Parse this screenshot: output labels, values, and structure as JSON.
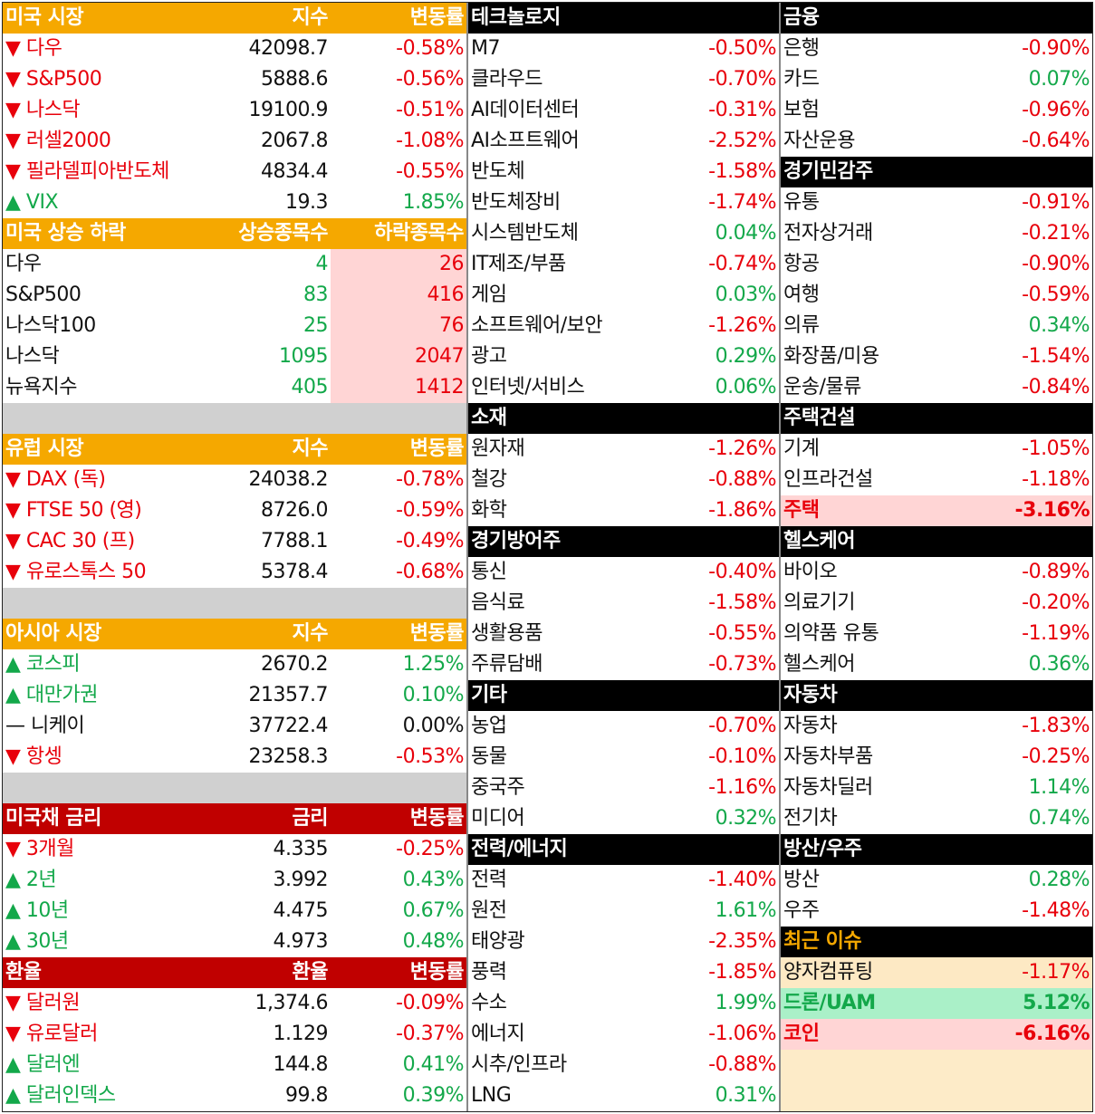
{
  "colors": {
    "up": "#13a84a",
    "down": "#e8000b",
    "flat": "#111111"
  },
  "left": [
    {
      "title": "미국 시장",
      "cols": [
        "지수",
        "변동률"
      ],
      "header_bg": "#f5a800",
      "header_color": "#ffffff",
      "rows": [
        {
          "name": "▼ 다우",
          "value": "42098.7",
          "change": "-0.58%"
        },
        {
          "name": "▼ S&P500",
          "value": "5888.6",
          "change": "-0.56%"
        },
        {
          "name": "▼ 나스닥",
          "value": "19100.9",
          "change": "-0.51%"
        },
        {
          "name": "▼ 러셀2000",
          "value": "2067.8",
          "change": "-1.08%"
        },
        {
          "name": "▼ 필라델피아반도체",
          "value": "4834.4",
          "change": "-0.55%"
        },
        {
          "name": "▲ VIX",
          "value": "19.3",
          "change": "1.85%"
        }
      ]
    },
    {
      "title": "미국 상승 하락",
      "cols": [
        "상승종목수",
        "하락종목수"
      ],
      "header_bg": "#f5a800",
      "header_color": "#ffffff",
      "down_bg": "#ffd5d5",
      "rows": [
        {
          "name": "다우",
          "up": "4",
          "down": "26"
        },
        {
          "name": "S&P500",
          "up": "83",
          "down": "416"
        },
        {
          "name": "나스닥100",
          "up": "25",
          "down": "76"
        },
        {
          "name": "나스닥",
          "up": "1095",
          "down": "2047"
        },
        {
          "name": "뉴욕지수",
          "up": "405",
          "down": "1412"
        }
      ]
    },
    {
      "title": "유럽 시장",
      "cols": [
        "지수",
        "변동률"
      ],
      "header_bg": "#f5a800",
      "header_color": "#ffffff",
      "rows": [
        {
          "name": "▼ DAX (독)",
          "value": "24038.2",
          "change": "-0.78%"
        },
        {
          "name": "▼ FTSE 50 (영)",
          "value": "8726.0",
          "change": "-0.59%"
        },
        {
          "name": "▼ CAC 30 (프)",
          "value": "7788.1",
          "change": "-0.49%"
        },
        {
          "name": "▼ 유로스톡스 50",
          "value": "5378.4",
          "change": "-0.68%"
        }
      ]
    },
    {
      "title": "아시아 시장",
      "cols": [
        "지수",
        "변동률"
      ],
      "header_bg": "#f5a800",
      "header_color": "#ffffff",
      "rows": [
        {
          "name": "▲ 코스피",
          "value": "2670.2",
          "change": "1.25%"
        },
        {
          "name": "▲ 대만가권",
          "value": "21357.7",
          "change": "0.10%"
        },
        {
          "name": "— 니케이",
          "value": "37722.4",
          "change": "0.00%"
        },
        {
          "name": "▼ 항셍",
          "value": "23258.3",
          "change": "-0.53%"
        }
      ]
    },
    {
      "title": "미국채 금리",
      "cols": [
        "금리",
        "변동률"
      ],
      "header_bg": "#c00000",
      "header_color": "#ffffff",
      "rows": [
        {
          "name": "▼ 3개월",
          "value": "4.335",
          "change": "-0.25%"
        },
        {
          "name": "▲ 2년",
          "value": "3.992",
          "change": "0.43%"
        },
        {
          "name": "▲ 10년",
          "value": "4.475",
          "change": "0.67%"
        },
        {
          "name": "▲ 30년",
          "value": "4.973",
          "change": "0.48%"
        }
      ]
    },
    {
      "title": "환율",
      "cols": [
        "환율",
        "변동률"
      ],
      "header_bg": "#c00000",
      "header_color": "#ffffff",
      "rows": [
        {
          "name": "▼ 달러원",
          "value": "1,374.6",
          "change": "-0.09%"
        },
        {
          "name": "▼ 유로달러",
          "value": "1.129",
          "change": "-0.37%"
        },
        {
          "name": "▲ 달러엔",
          "value": "144.8",
          "change": "0.41%"
        },
        {
          "name": "▲ 달러인덱스",
          "value": "99.8",
          "change": "0.39%"
        }
      ]
    }
  ],
  "middle": [
    {
      "title": "테크놀로지",
      "header_bg": "#000000",
      "header_color": "#ffffff",
      "rows": [
        {
          "name": "M7",
          "change": "-0.50%"
        },
        {
          "name": "클라우드",
          "change": "-0.70%"
        },
        {
          "name": "AI데이터센터",
          "change": "-0.31%"
        },
        {
          "name": "AI소프트웨어",
          "change": "-2.52%"
        },
        {
          "name": "반도체",
          "change": "-1.58%"
        },
        {
          "name": "반도체장비",
          "change": "-1.74%"
        },
        {
          "name": "시스템반도체",
          "change": "0.04%"
        },
        {
          "name": "IT제조/부품",
          "change": "-0.74%"
        },
        {
          "name": "게임",
          "change": "0.03%"
        },
        {
          "name": "소프트웨어/보안",
          "change": "-1.26%"
        },
        {
          "name": "광고",
          "change": "0.29%"
        },
        {
          "name": "인터넷/서비스",
          "change": "0.06%"
        }
      ]
    },
    {
      "title": "소재",
      "header_bg": "#000000",
      "header_color": "#ffffff",
      "rows": [
        {
          "name": "원자재",
          "change": "-1.26%"
        },
        {
          "name": "철강",
          "change": "-0.88%"
        },
        {
          "name": "화학",
          "change": "-1.86%"
        }
      ]
    },
    {
      "title": "경기방어주",
      "header_bg": "#000000",
      "header_color": "#ffffff",
      "rows": [
        {
          "name": "통신",
          "change": "-0.40%"
        },
        {
          "name": "음식료",
          "change": "-1.58%"
        },
        {
          "name": "생활용품",
          "change": "-0.55%"
        },
        {
          "name": "주류담배",
          "change": "-0.73%"
        }
      ]
    },
    {
      "title": "기타",
      "header_bg": "#000000",
      "header_color": "#ffffff",
      "rows": [
        {
          "name": "농업",
          "change": "-0.70%"
        },
        {
          "name": "동물",
          "change": "-0.10%"
        },
        {
          "name": "중국주",
          "change": "-1.16%"
        },
        {
          "name": "미디어",
          "change": "0.32%"
        }
      ]
    },
    {
      "title": "전력/에너지",
      "header_bg": "#000000",
      "header_color": "#ffffff",
      "rows": [
        {
          "name": "전력",
          "change": "-1.40%"
        },
        {
          "name": "원전",
          "change": "1.61%"
        },
        {
          "name": "태양광",
          "change": "-2.35%"
        },
        {
          "name": "풍력",
          "change": "-1.85%"
        },
        {
          "name": "수소",
          "change": "1.99%"
        },
        {
          "name": "에너지",
          "change": "-1.06%"
        },
        {
          "name": "시추/인프라",
          "change": "-0.88%"
        },
        {
          "name": "LNG",
          "change": "0.31%"
        }
      ]
    }
  ],
  "right": [
    {
      "title": "금융",
      "header_bg": "#000000",
      "header_color": "#ffffff",
      "rows": [
        {
          "name": "은행",
          "change": "-0.90%"
        },
        {
          "name": "카드",
          "change": "0.07%"
        },
        {
          "name": "보험",
          "change": "-0.96%"
        },
        {
          "name": "자산운용",
          "change": "-0.64%"
        }
      ]
    },
    {
      "title": "경기민감주",
      "header_bg": "#000000",
      "header_color": "#ffffff",
      "rows": [
        {
          "name": "유통",
          "change": "-0.91%"
        },
        {
          "name": "전자상거래",
          "change": "-0.21%"
        },
        {
          "name": "항공",
          "change": "-0.90%"
        },
        {
          "name": "여행",
          "change": "-0.59%"
        },
        {
          "name": "의류",
          "change": "0.34%"
        },
        {
          "name": "화장품/미용",
          "change": "-1.54%"
        },
        {
          "name": "운송/물류",
          "change": "-0.84%"
        }
      ]
    },
    {
      "title": "주택건설",
      "header_bg": "#000000",
      "header_color": "#ffffff",
      "rows": [
        {
          "name": "기계",
          "change": "-1.05%"
        },
        {
          "name": "인프라건설",
          "change": "-1.18%"
        },
        {
          "name": "주택",
          "change": "-3.16%",
          "bg": "#ffd5d5",
          "bold": true
        }
      ]
    },
    {
      "title": "헬스케어",
      "header_bg": "#000000",
      "header_color": "#ffffff",
      "rows": [
        {
          "name": "바이오",
          "change": "-0.89%"
        },
        {
          "name": "의료기기",
          "change": "-0.20%"
        },
        {
          "name": "의약품 유통",
          "change": "-1.19%"
        },
        {
          "name": "헬스케어",
          "change": "0.36%"
        }
      ]
    },
    {
      "title": "자동차",
      "header_bg": "#000000",
      "header_color": "#ffffff",
      "rows": [
        {
          "name": "자동차",
          "change": "-1.83%"
        },
        {
          "name": "자동차부품",
          "change": "-0.25%"
        },
        {
          "name": "자동차딜러",
          "change": "1.14%"
        },
        {
          "name": "전기차",
          "change": "0.74%"
        }
      ]
    },
    {
      "title": "방산/우주",
      "header_bg": "#000000",
      "header_color": "#ffffff",
      "rows": [
        {
          "name": "방산",
          "change": "0.28%"
        },
        {
          "name": "우주",
          "change": "-1.48%"
        }
      ]
    },
    {
      "title": "최근 이슈",
      "header_bg": "#000000",
      "header_color": "#f5a800",
      "rows": [
        {
          "name": "양자컴퓨팅",
          "change": "-1.17%",
          "bg": "#fde9c4"
        },
        {
          "name": "드론/UAM",
          "change": "5.12%",
          "bg": "#aaf0c8",
          "bold": true
        },
        {
          "name": "코인",
          "change": "-6.16%",
          "bg": "#ffd5d5",
          "bold": true
        }
      ]
    }
  ]
}
